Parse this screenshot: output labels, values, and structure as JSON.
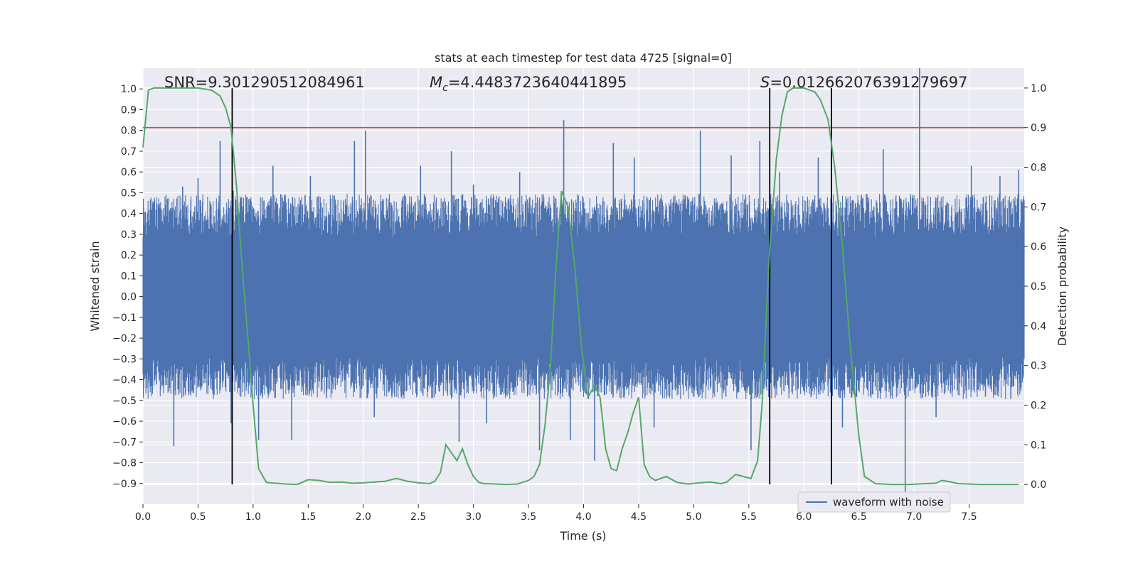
{
  "chart_data": {
    "type": "line",
    "title": "stats at each timestep for test data 4725 [signal=0]",
    "xlabel": "Time (s)",
    "ylabel_left": "Whitened strain",
    "ylabel_right": "Detection probability",
    "xlim": [
      0.0,
      8.0
    ],
    "ylim_left": [
      -1.0,
      1.1
    ],
    "ylim_right": [
      -0.05,
      1.05
    ],
    "x_ticks": [
      "0.0",
      "0.5",
      "1.0",
      "1.5",
      "2.0",
      "2.5",
      "3.0",
      "3.5",
      "4.0",
      "4.5",
      "5.0",
      "5.5",
      "6.0",
      "6.5",
      "7.0",
      "7.5"
    ],
    "y_left_ticks": [
      "1.0",
      "0.9",
      "0.8",
      "0.7",
      "0.6",
      "0.5",
      "0.4",
      "0.3",
      "0.2",
      "0.1",
      "0.0",
      "−0.1",
      "−0.2",
      "−0.3",
      "−0.4",
      "−0.5",
      "−0.6",
      "−0.7",
      "−0.8",
      "−0.9"
    ],
    "y_right_ticks": [
      "1.0",
      "0.9",
      "0.8",
      "0.7",
      "0.6",
      "0.5",
      "0.4",
      "0.3",
      "0.2",
      "0.1",
      "0.0"
    ],
    "annotations": {
      "snr": "SNR=9.301290512084961",
      "mc_prefix": "M",
      "mc_sub": "c",
      "mc_value": "=4.4483723640441895",
      "s_prefix": "S",
      "s_value": "=0.012662076391279697"
    },
    "legend": {
      "label": "waveform with noise",
      "position": "lower-right"
    },
    "grid": true,
    "threshold_probability": 0.9,
    "vertical_lines_s": [
      0.81,
      5.69,
      6.25
    ],
    "strain_series": {
      "name": "waveform with noise",
      "color": "#4c72b0",
      "band_low": -0.38,
      "band_high": 0.38,
      "spikes": [
        [
          0.28,
          -0.72
        ],
        [
          0.36,
          0.53
        ],
        [
          0.5,
          0.57
        ],
        [
          0.7,
          0.75
        ],
        [
          0.8,
          -0.61
        ],
        [
          0.82,
          0.51
        ],
        [
          1.05,
          -0.69
        ],
        [
          1.18,
          0.63
        ],
        [
          1.35,
          -0.69
        ],
        [
          1.52,
          0.58
        ],
        [
          1.92,
          0.75
        ],
        [
          2.02,
          0.8
        ],
        [
          2.1,
          -0.58
        ],
        [
          2.52,
          0.63
        ],
        [
          2.8,
          0.7
        ],
        [
          2.87,
          -0.7
        ],
        [
          3.0,
          0.54
        ],
        [
          3.12,
          -0.61
        ],
        [
          3.42,
          0.6
        ],
        [
          3.6,
          -0.74
        ],
        [
          3.82,
          0.85
        ],
        [
          3.88,
          -0.69
        ],
        [
          4.1,
          -0.79
        ],
        [
          4.27,
          0.74
        ],
        [
          4.46,
          0.67
        ],
        [
          4.64,
          -0.63
        ],
        [
          5.06,
          0.8
        ],
        [
          5.34,
          0.68
        ],
        [
          5.52,
          -0.74
        ],
        [
          5.6,
          0.75
        ],
        [
          5.78,
          0.6
        ],
        [
          6.13,
          0.67
        ],
        [
          6.35,
          -0.63
        ],
        [
          6.72,
          0.71
        ],
        [
          6.92,
          -0.99
        ],
        [
          7.05,
          1.1
        ],
        [
          7.2,
          -0.58
        ],
        [
          7.52,
          0.63
        ],
        [
          7.78,
          0.58
        ],
        [
          7.95,
          0.61
        ]
      ]
    },
    "probability_series": {
      "name": "detection probability",
      "color": "#55a868",
      "x": [
        0.0,
        0.05,
        0.1,
        0.3,
        0.5,
        0.62,
        0.7,
        0.75,
        0.8,
        0.85,
        0.9,
        0.95,
        1.0,
        1.05,
        1.12,
        1.2,
        1.3,
        1.4,
        1.5,
        1.6,
        1.7,
        1.8,
        1.9,
        2.0,
        2.1,
        2.2,
        2.3,
        2.4,
        2.5,
        2.6,
        2.65,
        2.7,
        2.75,
        2.8,
        2.85,
        2.9,
        2.95,
        3.0,
        3.05,
        3.1,
        3.2,
        3.3,
        3.4,
        3.5,
        3.55,
        3.6,
        3.65,
        3.7,
        3.75,
        3.8,
        3.86,
        3.92,
        3.98,
        4.04,
        4.1,
        4.15,
        4.2,
        4.25,
        4.3,
        4.35,
        4.4,
        4.45,
        4.5,
        4.55,
        4.6,
        4.65,
        4.75,
        4.85,
        4.95,
        5.05,
        5.15,
        5.25,
        5.3,
        5.38,
        5.45,
        5.52,
        5.58,
        5.62,
        5.68,
        5.75,
        5.8,
        5.85,
        5.9,
        6.0,
        6.1,
        6.15,
        6.22,
        6.28,
        6.35,
        6.42,
        6.5,
        6.55,
        6.65,
        6.8,
        6.95,
        7.1,
        7.2,
        7.25,
        7.3,
        7.4,
        7.5,
        7.6,
        7.7,
        7.95
      ],
      "y": [
        0.85,
        0.995,
        1.0,
        1.0,
        1.0,
        0.995,
        0.98,
        0.95,
        0.9,
        0.75,
        0.55,
        0.38,
        0.2,
        0.04,
        0.005,
        0.003,
        0.001,
        0.0,
        0.012,
        0.01,
        0.005,
        0.006,
        0.003,
        0.004,
        0.006,
        0.008,
        0.015,
        0.008,
        0.004,
        0.002,
        0.008,
        0.03,
        0.1,
        0.08,
        0.06,
        0.09,
        0.05,
        0.02,
        0.005,
        0.002,
        0.001,
        0.0,
        0.001,
        0.01,
        0.02,
        0.05,
        0.15,
        0.3,
        0.55,
        0.74,
        0.7,
        0.55,
        0.35,
        0.22,
        0.25,
        0.22,
        0.09,
        0.04,
        0.035,
        0.09,
        0.13,
        0.18,
        0.22,
        0.05,
        0.02,
        0.01,
        0.02,
        0.005,
        0.001,
        0.004,
        0.006,
        0.002,
        0.006,
        0.025,
        0.02,
        0.015,
        0.06,
        0.2,
        0.55,
        0.82,
        0.93,
        0.99,
        1.0,
        1.0,
        0.99,
        0.97,
        0.92,
        0.8,
        0.6,
        0.35,
        0.12,
        0.02,
        0.002,
        0.0,
        0.0,
        0.002,
        0.003,
        0.01,
        0.008,
        0.002,
        0.001,
        0.0,
        0.0,
        0.0
      ]
    },
    "colors": {
      "axes_bg": "#eaeaf2",
      "grid": "#ffffff",
      "threshold": "#c44e52",
      "vline": "#000000"
    }
  }
}
